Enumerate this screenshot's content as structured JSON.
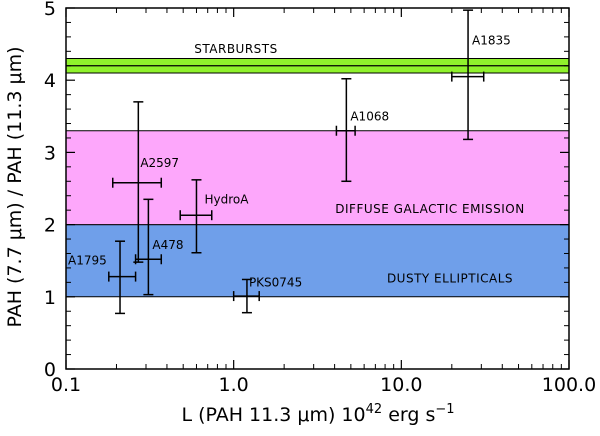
{
  "chart_data": {
    "type": "scatter",
    "xlabel": "L (PAH 11.3 μm) 10",
    "xlabel_sup": "42",
    "xlabel_unit": "erg s",
    "xlabel_unit_sup": "−1",
    "ylabel": "PAH (7.7 μm) / PAH (11.3 μm)",
    "xscale": "log",
    "xlim": [
      0.1,
      100.0
    ],
    "ylim": [
      0,
      5
    ],
    "x_ticks": [
      {
        "value": 0.1,
        "label": "0.1"
      },
      {
        "value": 1.0,
        "label": "1.0"
      },
      {
        "value": 10.0,
        "label": "10.0"
      },
      {
        "value": 100.0,
        "label": "100.0"
      }
    ],
    "y_ticks": [
      {
        "value": 0,
        "label": "0"
      },
      {
        "value": 1,
        "label": "1"
      },
      {
        "value": 2,
        "label": "2"
      },
      {
        "value": 3,
        "label": "3"
      },
      {
        "value": 4,
        "label": "4"
      },
      {
        "value": 5,
        "label": "5"
      }
    ],
    "bands": [
      {
        "label": "DUSTY ELLIPTICALS",
        "y0": 1.0,
        "y1": 2.0,
        "color": "#6f9fea"
      },
      {
        "label": "DIFFUSE GALACTIC EMISSION",
        "y0": 2.0,
        "y1": 3.3,
        "color": "#fda7fb"
      },
      {
        "label": "STARBURSTS",
        "y0": 4.1,
        "y1": 4.3,
        "center": 4.2,
        "color": "#8ff22c"
      }
    ],
    "points": [
      {
        "label": "A1835",
        "x": 25.0,
        "y": 4.05,
        "xerr": [
          20.0,
          31.0
        ],
        "yerr": [
          3.18,
          4.97
        ]
      },
      {
        "label": "A1068",
        "x": 4.7,
        "y": 3.3,
        "xerr": [
          4.1,
          5.3
        ],
        "yerr": [
          2.6,
          4.02
        ]
      },
      {
        "label": "A2597",
        "x": 0.27,
        "y": 2.58,
        "xerr": [
          0.19,
          0.37
        ],
        "yerr": [
          1.48,
          3.7
        ]
      },
      {
        "label": "HydroA",
        "x": 0.6,
        "y": 2.13,
        "xerr": [
          0.48,
          0.74
        ],
        "yerr": [
          1.61,
          2.62
        ]
      },
      {
        "label": "A478",
        "x": 0.31,
        "y": 1.52,
        "xerr": [
          0.26,
          0.37
        ],
        "yerr": [
          1.03,
          2.35
        ]
      },
      {
        "label": "A1795",
        "x": 0.21,
        "y": 1.28,
        "xerr": [
          0.18,
          0.26
        ],
        "yerr": [
          0.77,
          1.77
        ]
      },
      {
        "label": "PKS0745",
        "x": 1.2,
        "y": 1.01,
        "xerr": [
          1.0,
          1.42
        ],
        "yerr": [
          0.78,
          1.24
        ]
      }
    ]
  }
}
